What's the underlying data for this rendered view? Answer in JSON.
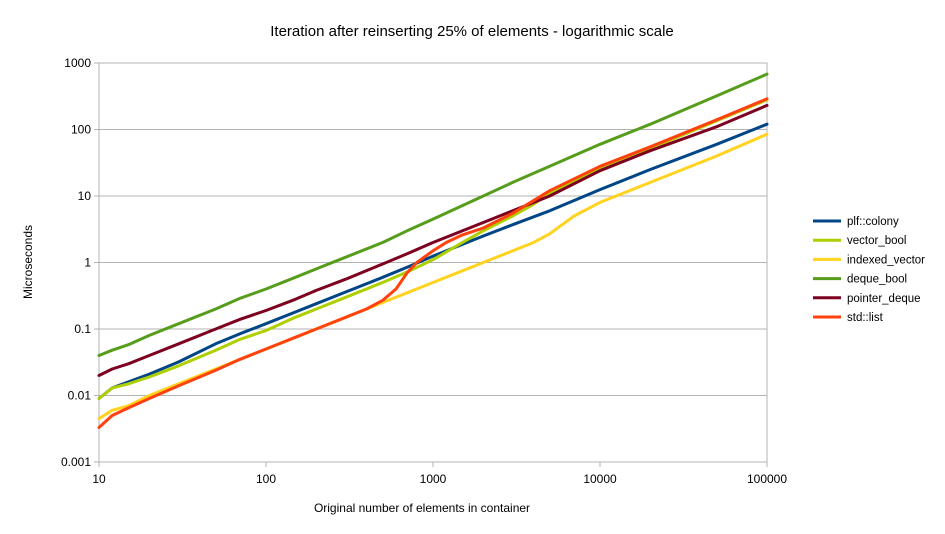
{
  "chart_data": {
    "type": "line",
    "title": "Iteration after reinserting 25% of elements - logarithmic scale",
    "xlabel": "Original number of elements in container",
    "ylabel": "Microseconds",
    "x_scale": "log",
    "y_scale": "log",
    "xlim": [
      10,
      100000
    ],
    "ylim": [
      0.001,
      1000
    ],
    "x_ticks": [
      "10",
      "100",
      "1000",
      "10000",
      "100000"
    ],
    "y_ticks": [
      "0.001",
      "0.01",
      "0.1",
      "1",
      "10",
      "100",
      "1000"
    ],
    "grid": true,
    "legend_position": "right",
    "series": [
      {
        "name": "plf::colony",
        "color": "#004586",
        "x": [
          10,
          12,
          15,
          20,
          30,
          50,
          70,
          100,
          150,
          200,
          300,
          500,
          700,
          1000,
          2000,
          3000,
          5000,
          10000,
          20000,
          50000,
          100000
        ],
        "y": [
          0.009,
          0.013,
          0.016,
          0.021,
          0.032,
          0.06,
          0.085,
          0.12,
          0.18,
          0.24,
          0.36,
          0.6,
          0.85,
          1.25,
          2.5,
          3.7,
          6.0,
          12.5,
          25,
          60,
          120
        ]
      },
      {
        "name": "vector_bool",
        "color": "#aecf00",
        "x": [
          10,
          12,
          15,
          20,
          30,
          50,
          70,
          100,
          150,
          200,
          300,
          500,
          700,
          1000,
          1500,
          2000,
          3000,
          4000,
          5000,
          7000,
          10000,
          20000,
          50000,
          100000
        ],
        "y": [
          0.009,
          0.013,
          0.015,
          0.019,
          0.028,
          0.048,
          0.07,
          0.095,
          0.15,
          0.2,
          0.3,
          0.5,
          0.72,
          1.1,
          2.0,
          3.0,
          5.0,
          7.5,
          11,
          17,
          26,
          52,
          135,
          280
        ]
      },
      {
        "name": "indexed_vector",
        "color": "#ffd320",
        "x": [
          10,
          12,
          15,
          20,
          30,
          50,
          70,
          100,
          150,
          200,
          300,
          500,
          700,
          1000,
          1500,
          2000,
          3000,
          4000,
          5000,
          7000,
          10000,
          20000,
          50000,
          100000
        ],
        "y": [
          0.0045,
          0.006,
          0.007,
          0.01,
          0.015,
          0.025,
          0.035,
          0.05,
          0.075,
          0.1,
          0.15,
          0.25,
          0.35,
          0.5,
          0.75,
          1.0,
          1.5,
          2.0,
          2.7,
          5.0,
          8.0,
          16,
          40,
          85
        ]
      },
      {
        "name": "deque_bool",
        "color": "#579d1c",
        "x": [
          10,
          12,
          15,
          20,
          30,
          50,
          70,
          100,
          150,
          200,
          300,
          500,
          700,
          1000,
          2000,
          3000,
          5000,
          10000,
          20000,
          50000,
          100000
        ],
        "y": [
          0.04,
          0.048,
          0.058,
          0.08,
          0.12,
          0.2,
          0.29,
          0.4,
          0.6,
          0.8,
          1.2,
          2.0,
          3.0,
          4.5,
          10,
          16,
          28,
          60,
          120,
          320,
          680
        ]
      },
      {
        "name": "pointer_deque",
        "color": "#7e0021",
        "x": [
          10,
          12,
          15,
          20,
          30,
          50,
          70,
          100,
          150,
          200,
          300,
          500,
          700,
          1000,
          2000,
          3000,
          5000,
          10000,
          20000,
          50000,
          100000
        ],
        "y": [
          0.02,
          0.025,
          0.03,
          0.04,
          0.06,
          0.1,
          0.14,
          0.19,
          0.28,
          0.38,
          0.56,
          0.95,
          1.35,
          2.0,
          4.0,
          6.0,
          10,
          24,
          48,
          110,
          230
        ]
      },
      {
        "name": "std::list",
        "color": "#ff420e",
        "x": [
          10,
          12,
          15,
          20,
          30,
          50,
          70,
          100,
          150,
          200,
          300,
          400,
          500,
          600,
          700,
          800,
          1000,
          1200,
          1500,
          2000,
          3000,
          5000,
          10000,
          20000,
          50000,
          100000
        ],
        "y": [
          0.0033,
          0.005,
          0.0065,
          0.009,
          0.014,
          0.024,
          0.035,
          0.05,
          0.075,
          0.1,
          0.15,
          0.2,
          0.27,
          0.4,
          0.7,
          1.0,
          1.5,
          2.0,
          2.6,
          3.3,
          5.5,
          12,
          28,
          55,
          140,
          290
        ]
      }
    ]
  }
}
